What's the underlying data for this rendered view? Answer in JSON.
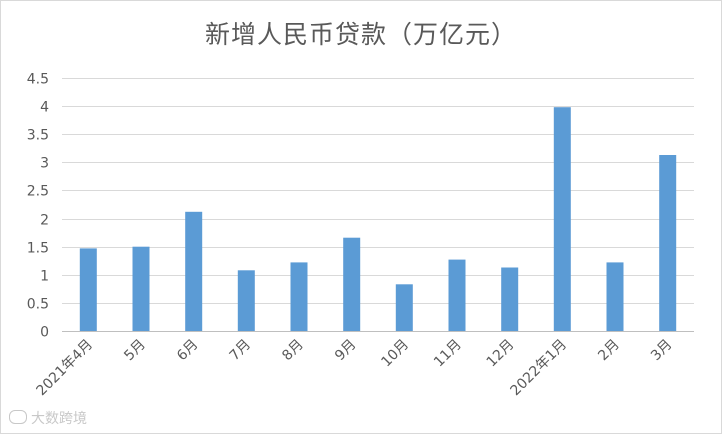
{
  "chart_data": {
    "type": "bar",
    "title": "新增人民币贷款（万亿元）",
    "xlabel": "",
    "ylabel": "",
    "categories": [
      "2021年4月",
      "5月",
      "6月",
      "7月",
      "8月",
      "9月",
      "10月",
      "11月",
      "12月",
      "2022年1月",
      "2月",
      "3月"
    ],
    "values": [
      1.47,
      1.5,
      2.12,
      1.08,
      1.22,
      1.66,
      0.83,
      1.27,
      1.13,
      3.98,
      1.22,
      3.13
    ],
    "ylim": [
      0,
      4.5
    ],
    "yticks": [
      "0",
      "0.5",
      "1",
      "1.5",
      "2",
      "2.5",
      "3",
      "3.5",
      "4",
      "4.5"
    ],
    "bar_color": "#5b9bd5",
    "grid": true,
    "legend": "none"
  },
  "watermark": "大数跨境"
}
